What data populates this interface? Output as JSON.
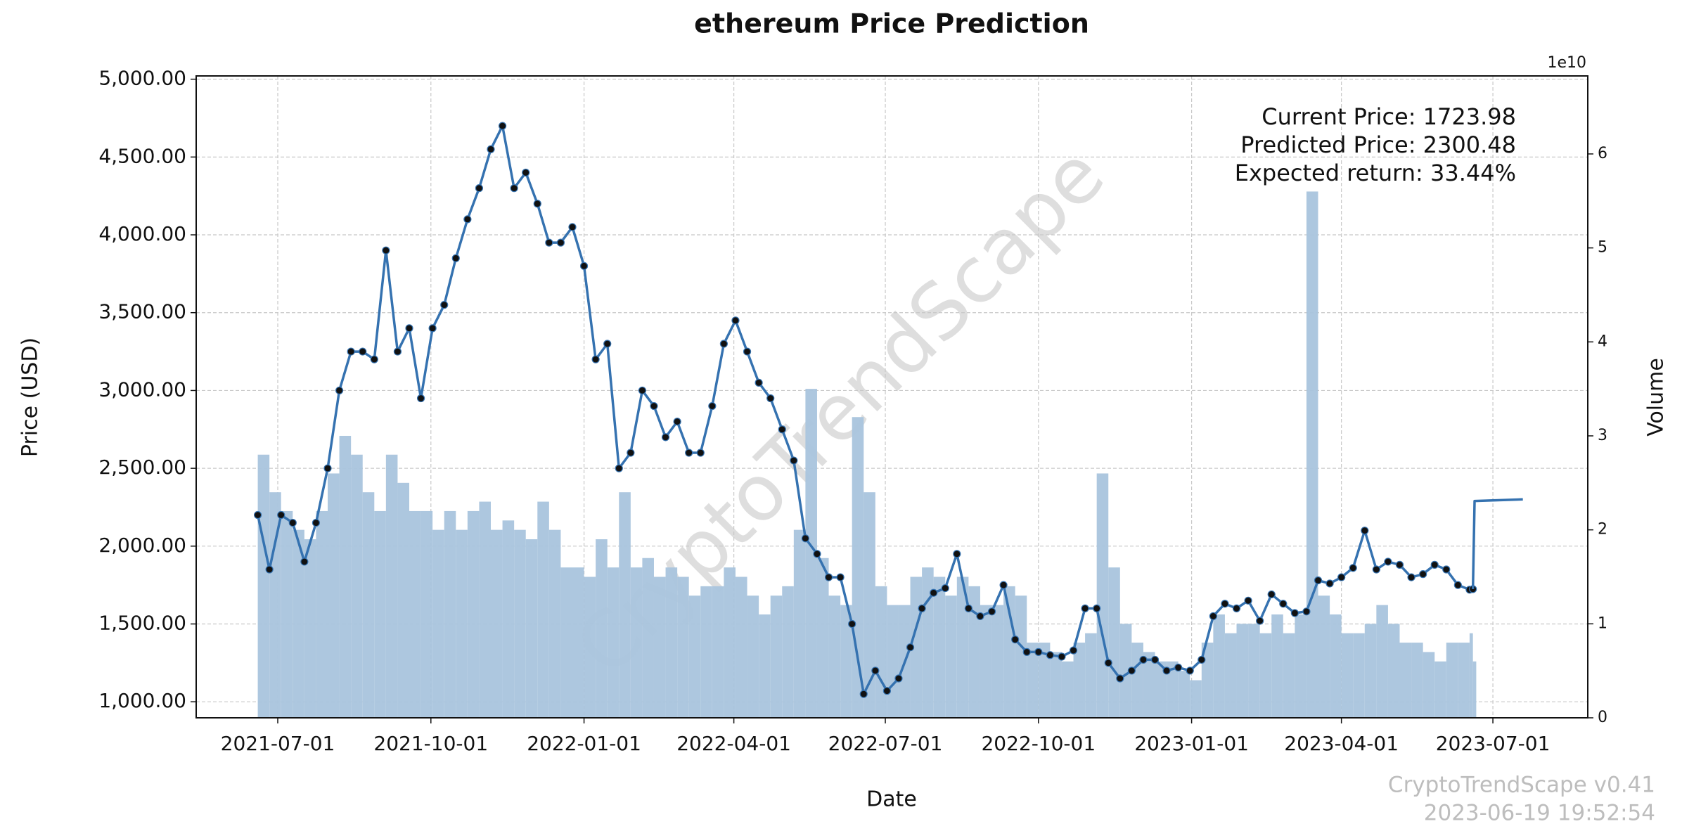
{
  "chart_data": {
    "type": "line",
    "title": "ethereum Price Prediction",
    "xlabel": "Date",
    "ylabel": "Price (USD)",
    "y2label": "Volume",
    "y2_offset": "1e10",
    "grid": true,
    "xlim": [
      "2021-05-13",
      "2023-08-27"
    ],
    "xticks": [
      "2021-07-01",
      "2021-10-01",
      "2022-01-01",
      "2022-04-01",
      "2022-07-01",
      "2022-10-01",
      "2023-01-01",
      "2023-04-01",
      "2023-07-01"
    ],
    "ylim": [
      897,
      5021
    ],
    "yticks": [
      {
        "value": 1000,
        "label": "1,000.00"
      },
      {
        "value": 1500,
        "label": "1,500.00"
      },
      {
        "value": 2000,
        "label": "2,000.00"
      },
      {
        "value": 2500,
        "label": "2,500.00"
      },
      {
        "value": 3000,
        "label": "3,000.00"
      },
      {
        "value": 3500,
        "label": "3,500.00"
      },
      {
        "value": 4000,
        "label": "4,000.00"
      },
      {
        "value": 4500,
        "label": "4,500.00"
      },
      {
        "value": 5000,
        "label": "5,000.00"
      }
    ],
    "y2lim": [
      0,
      6.83
    ],
    "y2ticks": [
      0,
      1,
      2,
      3,
      4,
      5,
      6
    ],
    "x": [
      "2021-06-19",
      "2021-06-26",
      "2021-07-03",
      "2021-07-10",
      "2021-07-17",
      "2021-07-24",
      "2021-07-31",
      "2021-08-07",
      "2021-08-14",
      "2021-08-21",
      "2021-08-28",
      "2021-09-04",
      "2021-09-11",
      "2021-09-18",
      "2021-09-25",
      "2021-10-02",
      "2021-10-09",
      "2021-10-16",
      "2021-10-23",
      "2021-10-30",
      "2021-11-06",
      "2021-11-13",
      "2021-11-20",
      "2021-11-27",
      "2021-12-04",
      "2021-12-11",
      "2021-12-18",
      "2021-12-25",
      "2022-01-01",
      "2022-01-08",
      "2022-01-15",
      "2022-01-22",
      "2022-01-29",
      "2022-02-05",
      "2022-02-12",
      "2022-02-19",
      "2022-02-26",
      "2022-03-05",
      "2022-03-12",
      "2022-03-19",
      "2022-03-26",
      "2022-04-02",
      "2022-04-09",
      "2022-04-16",
      "2022-04-23",
      "2022-04-30",
      "2022-05-07",
      "2022-05-14",
      "2022-05-21",
      "2022-05-28",
      "2022-06-04",
      "2022-06-11",
      "2022-06-18",
      "2022-06-25",
      "2022-07-02",
      "2022-07-09",
      "2022-07-16",
      "2022-07-23",
      "2022-07-30",
      "2022-08-06",
      "2022-08-13",
      "2022-08-20",
      "2022-08-27",
      "2022-09-03",
      "2022-09-10",
      "2022-09-17",
      "2022-09-24",
      "2022-10-01",
      "2022-10-08",
      "2022-10-15",
      "2022-10-22",
      "2022-10-29",
      "2022-11-05",
      "2022-11-12",
      "2022-11-19",
      "2022-11-26",
      "2022-12-03",
      "2022-12-10",
      "2022-12-17",
      "2022-12-24",
      "2022-12-31",
      "2023-01-07",
      "2023-01-14",
      "2023-01-21",
      "2023-01-28",
      "2023-02-04",
      "2023-02-11",
      "2023-02-18",
      "2023-02-25",
      "2023-03-04",
      "2023-03-11",
      "2023-03-18",
      "2023-03-25",
      "2023-04-01",
      "2023-04-08",
      "2023-04-15",
      "2023-04-22",
      "2023-04-29",
      "2023-05-06",
      "2023-05-13",
      "2023-05-20",
      "2023-05-27",
      "2023-06-03",
      "2023-06-10",
      "2023-06-17",
      "2023-06-19"
    ],
    "series": [
      {
        "type": "bar",
        "axis": "y2",
        "color": "#a9c4dd",
        "values": [
          2.8,
          2.4,
          2.2,
          2.0,
          1.9,
          2.2,
          2.6,
          3.0,
          2.8,
          2.4,
          2.2,
          2.8,
          2.5,
          2.2,
          2.2,
          2.0,
          2.2,
          2.0,
          2.2,
          2.3,
          2.0,
          2.1,
          2.0,
          1.9,
          2.3,
          2.0,
          1.6,
          1.6,
          1.5,
          1.9,
          1.6,
          2.4,
          1.6,
          1.7,
          1.5,
          1.6,
          1.5,
          1.3,
          1.4,
          1.4,
          1.6,
          1.5,
          1.3,
          1.1,
          1.3,
          1.4,
          2.0,
          3.5,
          1.7,
          1.3,
          1.2,
          3.2,
          2.4,
          1.4,
          1.2,
          1.2,
          1.5,
          1.6,
          1.5,
          1.3,
          1.5,
          1.4,
          1.2,
          1.2,
          1.4,
          1.3,
          0.8,
          0.8,
          0.7,
          0.6,
          0.8,
          0.9,
          2.6,
          1.6,
          1.0,
          0.8,
          0.7,
          0.6,
          0.6,
          0.5,
          0.4,
          0.8,
          1.1,
          0.9,
          1.0,
          1.0,
          0.9,
          1.1,
          0.9,
          1.1,
          5.6,
          1.3,
          1.1,
          0.9,
          0.9,
          1.0,
          1.2,
          1.0,
          0.8,
          0.8,
          0.7,
          0.6,
          0.8,
          0.8,
          0.9,
          0.6
        ]
      },
      {
        "type": "line",
        "color": "#3572b0",
        "marker": true,
        "values": [
          2200,
          1850,
          2200,
          2150,
          1900,
          2150,
          2500,
          3000,
          3250,
          3250,
          3200,
          3900,
          3250,
          3400,
          2950,
          3400,
          3550,
          3850,
          4100,
          4300,
          4550,
          4700,
          4300,
          4400,
          4200,
          3950,
          3950,
          4050,
          3800,
          3200,
          3300,
          2500,
          2600,
          3000,
          2900,
          2700,
          2800,
          2600,
          2600,
          2900,
          3300,
          3450,
          3250,
          3050,
          2950,
          2750,
          2550,
          2050,
          1950,
          1800,
          1800,
          1500,
          1050,
          1200,
          1070,
          1150,
          1350,
          1600,
          1700,
          1730,
          1950,
          1600,
          1550,
          1580,
          1750,
          1400,
          1320,
          1320,
          1300,
          1290,
          1330,
          1600,
          1600,
          1250,
          1150,
          1200,
          1270,
          1270,
          1200,
          1220,
          1200,
          1270,
          1550,
          1630,
          1600,
          1650,
          1520,
          1690,
          1630,
          1570,
          1580,
          1780,
          1760,
          1800,
          1860,
          2100,
          1850,
          1900,
          1880,
          1800,
          1820,
          1880,
          1850,
          1750,
          1720,
          1723.98
        ]
      },
      {
        "type": "line",
        "color": "#3572b0",
        "marker": false,
        "x": [
          "2023-06-19",
          "2023-06-20",
          "2023-07-19"
        ],
        "values": [
          1723.98,
          2290,
          2300.48
        ]
      }
    ],
    "annotations": [
      "Current Price: 1723.98",
      "Predicted Price: 2300.48",
      "Expected return: 33.44%"
    ],
    "watermark": "CryptoTrendScape",
    "footer": [
      "CryptoTrendScape v0.41",
      "2023-06-19 19:52:54"
    ]
  }
}
